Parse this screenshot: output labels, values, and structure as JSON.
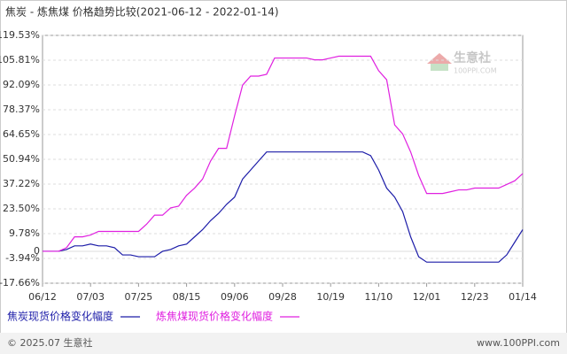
{
  "chart_data": {
    "type": "line",
    "title": "焦炭 - 炼焦煤 价格趋势比较(2021-06-12 - 2022-01-14)",
    "categories": [
      "06/12",
      null,
      null,
      null,
      null,
      null,
      "07/03",
      null,
      null,
      null,
      null,
      null,
      "07/25",
      null,
      null,
      null,
      null,
      null,
      "08/15",
      null,
      null,
      null,
      null,
      null,
      "09/06",
      null,
      null,
      null,
      null,
      null,
      "09/28",
      null,
      null,
      null,
      null,
      null,
      "10/19",
      null,
      null,
      null,
      null,
      null,
      "11/10",
      null,
      null,
      null,
      null,
      null,
      "12/01",
      null,
      null,
      null,
      null,
      null,
      "12/23",
      null,
      null,
      null,
      null,
      null,
      "01/14"
    ],
    "series": [
      {
        "name": "焦炭现货价格变化幅度",
        "color": "#1c1ca8",
        "values": [
          0,
          0,
          0,
          1,
          3,
          3,
          4,
          3,
          3,
          2,
          -2,
          -2,
          -3,
          -3,
          -3,
          0,
          1,
          3,
          4,
          8,
          12,
          17,
          21,
          26,
          30,
          40,
          45,
          50,
          55,
          55,
          55,
          55,
          55,
          55,
          55,
          55,
          55,
          55,
          55,
          55,
          55,
          53,
          45,
          35,
          30,
          22,
          8,
          -3,
          -6,
          -6,
          -6,
          -6,
          -6,
          -6,
          -6,
          -6,
          -6,
          -6,
          -2,
          5,
          12
        ]
      },
      {
        "name": "炼焦煤现货价格变化幅度",
        "color": "#e020e0",
        "values": [
          0,
          0,
          0,
          2,
          8,
          8,
          9,
          11,
          11,
          11,
          11,
          11,
          11,
          15,
          20,
          20,
          24,
          25,
          31,
          35,
          40,
          50,
          57,
          57,
          75,
          92,
          97,
          97,
          98,
          107,
          107,
          107,
          107,
          107,
          106,
          106,
          107,
          108,
          108,
          108,
          108,
          108,
          100,
          95,
          70,
          65,
          55,
          42,
          32,
          32,
          32,
          33,
          34,
          34,
          35,
          35,
          35,
          35,
          37,
          39,
          43
        ]
      }
    ],
    "ylim": [
      -17.66,
      119.53
    ],
    "yticks": [
      {
        "value": -17.66,
        "label": "-17.66%"
      },
      {
        "value": -3.94,
        "label": "-3.94%"
      },
      0,
      {
        "value": 9.78,
        "label": "9.78%"
      },
      {
        "value": 23.5,
        "label": "23.50%"
      },
      {
        "value": 37.22,
        "label": "37.22%"
      },
      {
        "value": 50.94,
        "label": "50.94%"
      },
      {
        "value": 64.65,
        "label": "64.65%"
      },
      {
        "value": 78.37,
        "label": "78.37%"
      },
      {
        "value": 92.09,
        "label": "92.09%"
      },
      {
        "value": 105.81,
        "label": "105.81%"
      },
      {
        "value": 119.53,
        "label": "119.53%"
      }
    ],
    "grid": true
  },
  "watermark": {
    "name": "生意社",
    "url": "100PPI.COM"
  },
  "footer": {
    "copyright": "© 2025.07 生意社",
    "site": "www.100PPI.com"
  }
}
